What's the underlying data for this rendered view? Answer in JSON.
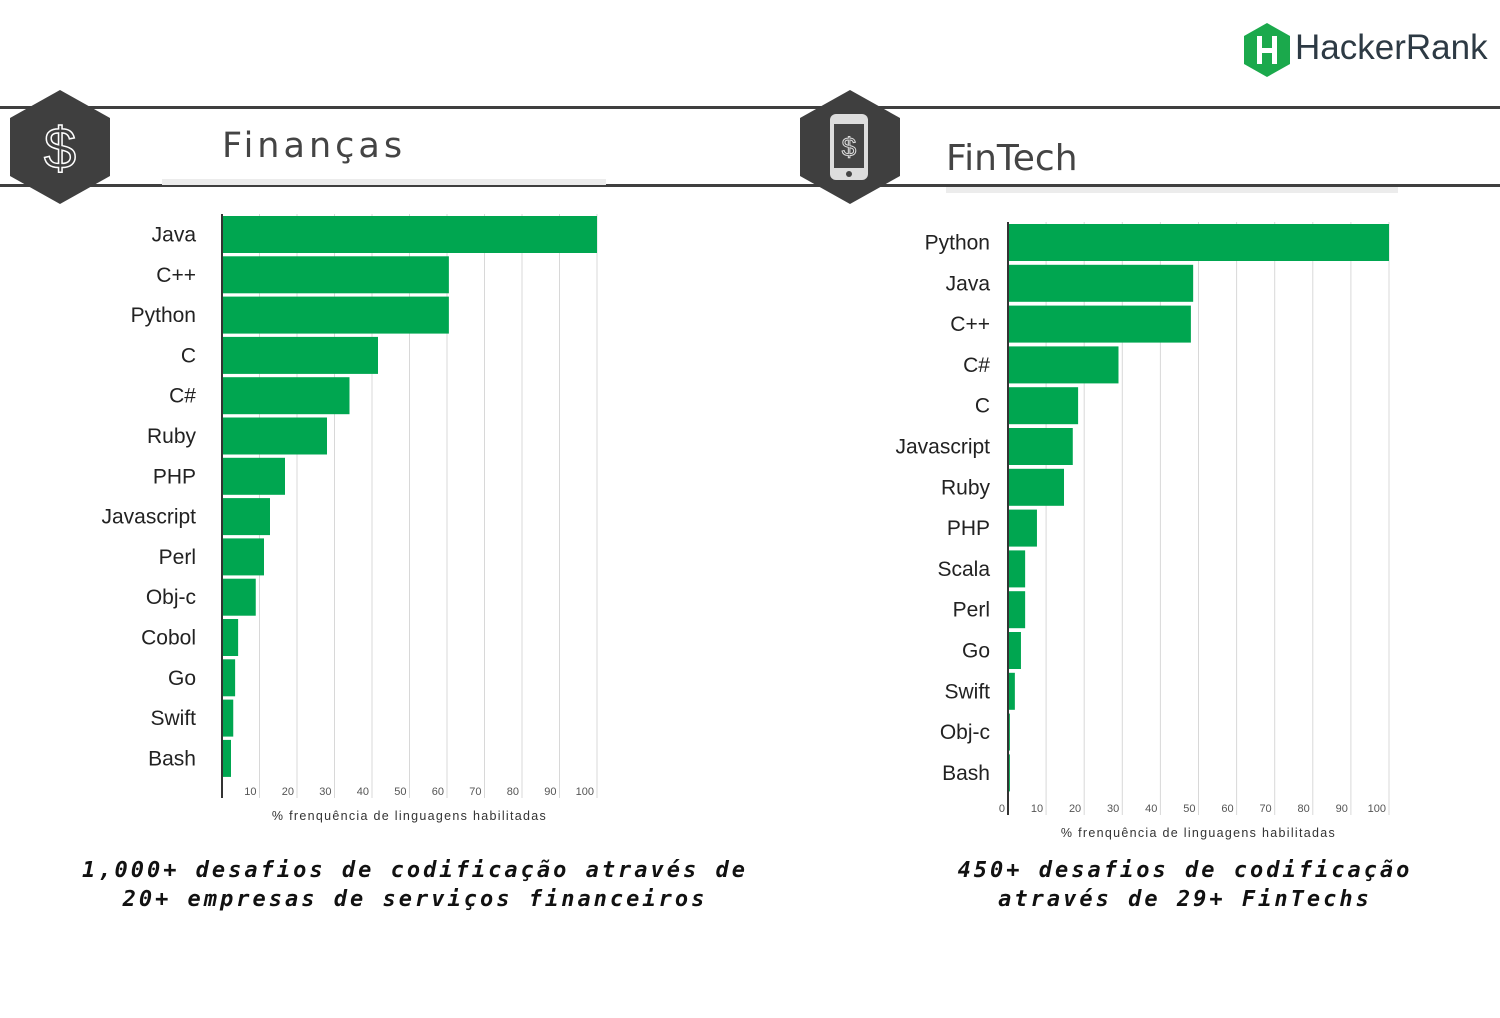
{
  "logo": {
    "text": "HackerRank",
    "color": "#1ba94c"
  },
  "colors": {
    "bar": "#00a650",
    "header": "#3f3f3f"
  },
  "chart_data": [
    {
      "type": "bar",
      "orientation": "horizontal",
      "title": "Finanças",
      "icon": "dollar-icon",
      "xlabel": "% frenquência de linguagens habilitadas",
      "xlim": [
        0,
        100
      ],
      "xticks": [
        10,
        20,
        30,
        40,
        50,
        60,
        70,
        80,
        90,
        100
      ],
      "grid": true,
      "categories": [
        "Java",
        "C++",
        "Python",
        "C",
        "C#",
        "Ruby",
        "PHP",
        "Javascript",
        "Perl",
        "Obj-c",
        "Cobol",
        "Go",
        "Swift",
        "Bash"
      ],
      "values": [
        100,
        60.5,
        60.5,
        41.6,
        34,
        28,
        16.8,
        12.8,
        11.2,
        9,
        4.3,
        3.5,
        3,
        2.4
      ],
      "caption": [
        "1,000+ desafios de codificação através de",
        "20+ empresas de serviços financeiros"
      ]
    },
    {
      "type": "bar",
      "orientation": "horizontal",
      "title": "FinTech",
      "icon": "mobile-dollar-icon",
      "xlabel": "% frenquência de linguagens habilitadas",
      "xlim": [
        0,
        100
      ],
      "xticks": [
        0,
        10,
        20,
        30,
        40,
        50,
        60,
        70,
        80,
        90,
        100
      ],
      "grid": true,
      "categories": [
        "Python",
        "Java",
        "C++",
        "C#",
        "C",
        "Javascript",
        "Ruby",
        "PHP",
        "Scala",
        "Perl",
        "Go",
        "Swift",
        "Obj-c",
        "Bash"
      ],
      "values": [
        100,
        48.6,
        48,
        29,
        18.4,
        17,
        14.7,
        7.6,
        4.5,
        4.5,
        3.4,
        1.8,
        0.5,
        0.5
      ],
      "caption": [
        "450+ desafios de codificação",
        "através de 29+ FinTechs"
      ]
    }
  ]
}
